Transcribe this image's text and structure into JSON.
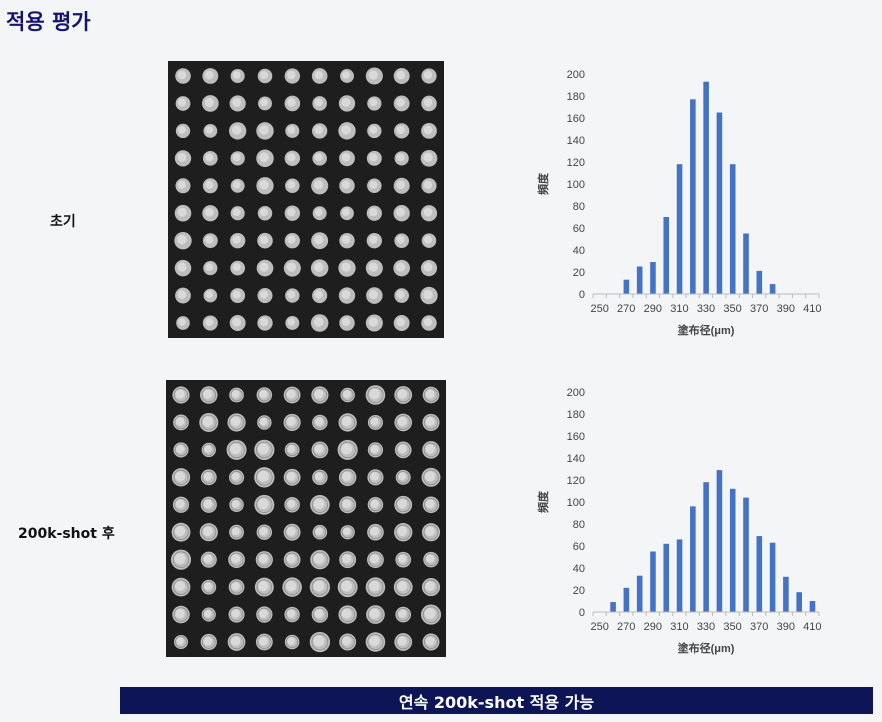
{
  "page": {
    "title": "적용 평가"
  },
  "rows": [
    {
      "label": "초기"
    },
    {
      "label": "200k-shot 후"
    }
  ],
  "footer": {
    "banner": "연속 200k-shot 적용 가능"
  },
  "colors": {
    "bar": "#4472c4",
    "title": "#14166e",
    "banner": "#0d1557"
  },
  "chart_data": [
    {
      "type": "bar",
      "xlabel": "塗布径(μm)",
      "ylabel": "頻度",
      "ylim": [
        0,
        200
      ],
      "yticks": [
        0,
        20,
        40,
        60,
        80,
        100,
        120,
        140,
        160,
        180,
        200
      ],
      "xtick_labels": [
        "250",
        "270",
        "290",
        "310",
        "330",
        "350",
        "370",
        "390",
        "410"
      ],
      "categories": [
        250,
        260,
        270,
        280,
        290,
        300,
        310,
        320,
        330,
        340,
        350,
        360,
        370,
        380,
        390,
        400,
        410
      ],
      "values": [
        0,
        0,
        13,
        25,
        29,
        70,
        118,
        177,
        193,
        165,
        118,
        55,
        21,
        9,
        0,
        0,
        0
      ]
    },
    {
      "type": "bar",
      "xlabel": "塗布径(μm)",
      "ylabel": "頻度",
      "ylim": [
        0,
        200
      ],
      "yticks": [
        0,
        20,
        40,
        60,
        80,
        100,
        120,
        140,
        160,
        180,
        200
      ],
      "xtick_labels": [
        "250",
        "270",
        "290",
        "310",
        "330",
        "350",
        "370",
        "390",
        "410"
      ],
      "categories": [
        250,
        260,
        270,
        280,
        290,
        300,
        310,
        320,
        330,
        340,
        350,
        360,
        370,
        380,
        390,
        400,
        410
      ],
      "values": [
        0,
        9,
        22,
        33,
        55,
        62,
        66,
        96,
        118,
        129,
        112,
        104,
        69,
        63,
        32,
        18,
        10
      ]
    }
  ]
}
